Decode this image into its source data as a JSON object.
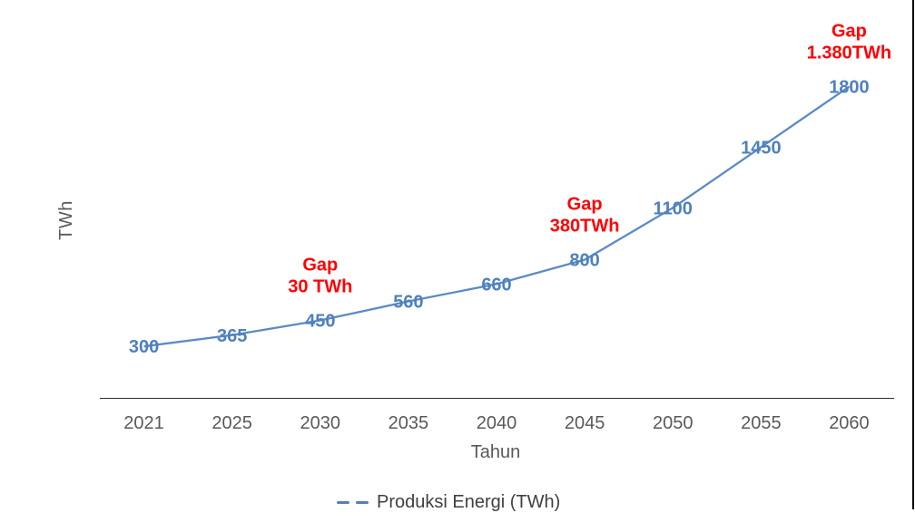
{
  "axis": {
    "y_title": "TWh",
    "x_title": "Tahun"
  },
  "legend": {
    "label": "Produksi Energi (TWh)",
    "marker": "dashed-line"
  },
  "colors": {
    "line": "#5b8ac6",
    "data_label": "#4f81bd",
    "gap_text": "#ff0000",
    "axis_line": "#2e2e2e",
    "tick_text": "#595959",
    "legend_text": "#404040",
    "page_border": "#000000"
  },
  "chart_data": {
    "type": "line",
    "title": "",
    "categories": [
      "2021",
      "2025",
      "2030",
      "2035",
      "2040",
      "2045",
      "2050",
      "2055",
      "2060"
    ],
    "series": [
      {
        "name": "Produksi Energi (TWh)",
        "values": [
          300,
          365,
          450,
          560,
          660,
          800,
          1100,
          1450,
          1800
        ],
        "color": "#5b8ac6",
        "line_style": "solid",
        "data_labels_shown": true
      }
    ],
    "annotations": [
      {
        "lines": [
          "Gap",
          "30 TWh"
        ],
        "x_category": "2030",
        "color": "#ff0000"
      },
      {
        "lines": [
          "Gap",
          "380TWh"
        ],
        "x_category": "2045",
        "color": "#ff0000"
      },
      {
        "lines": [
          "Gap",
          "1.380TWh"
        ],
        "x_category": "2060",
        "color": "#ff0000"
      }
    ],
    "xlabel": "Tahun",
    "ylabel": "TWh",
    "ylim": [
      0,
      2300
    ],
    "grid": false,
    "legend_position": "bottom"
  }
}
